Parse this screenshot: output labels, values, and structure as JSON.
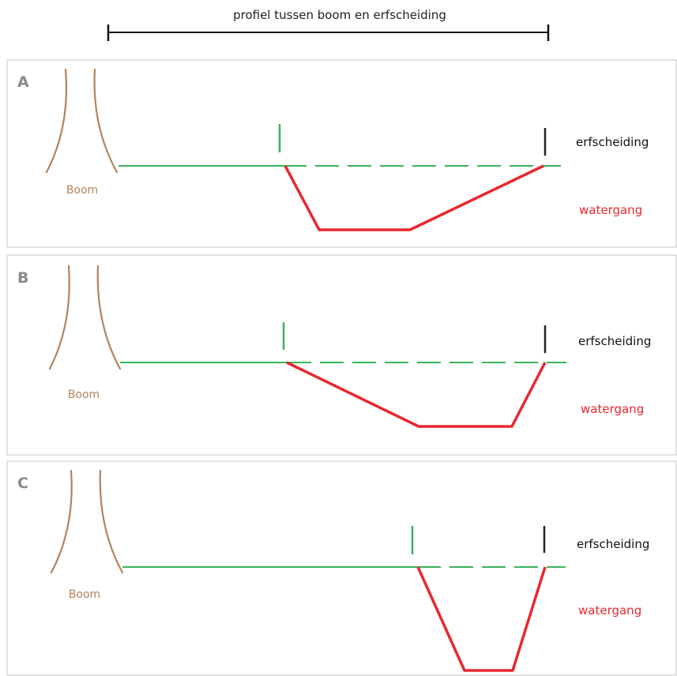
{
  "header": {
    "title": "profiel tussen boom en erfscheiding"
  },
  "panels": [
    {
      "letter": "A",
      "tree_label": "Boom",
      "boundary_label": "erfscheiding",
      "ditch_label": "watergang"
    },
    {
      "letter": "B",
      "tree_label": "Boom",
      "boundary_label": "erfscheiding",
      "ditch_label": "watergang"
    },
    {
      "letter": "C",
      "tree_label": "Boom",
      "boundary_label": "erfscheiding",
      "ditch_label": "watergang"
    }
  ],
  "colors": {
    "tree": "#b5835a",
    "ground": "#3cb35a",
    "ditch": "#e8282e",
    "boundary_marker": "#222222",
    "letter": "#8a8a8a",
    "panel_border": "#d9d9d9"
  }
}
